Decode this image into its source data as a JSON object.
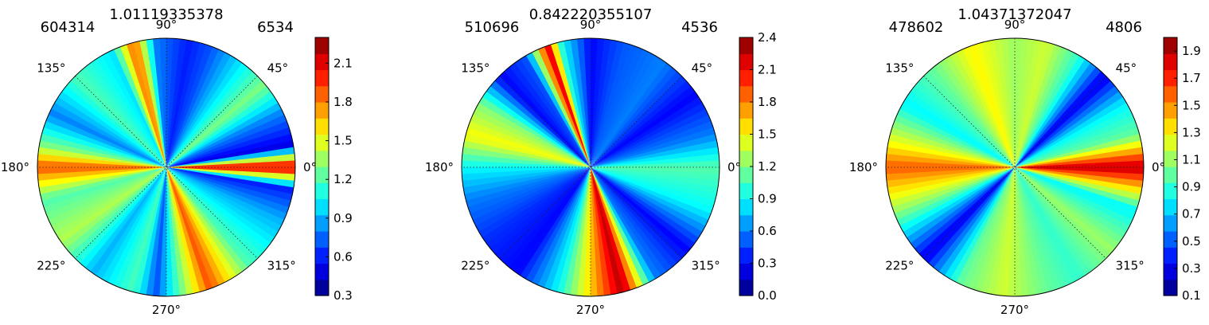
{
  "chart_data": [
    {
      "type": "polar-contour",
      "title": "1.01119335378",
      "left_label": "604314",
      "right_label": "6534",
      "angle_ticks": [
        "0°",
        "45°",
        "90°",
        "135°",
        "180°",
        "225°",
        "270°",
        "315°"
      ],
      "colorbar": {
        "ticks": [
          "0.3",
          "0.6",
          "0.9",
          "1.2",
          "1.5",
          "1.8",
          "2.1"
        ],
        "range": [
          0.3,
          2.3
        ]
      },
      "rays": [
        {
          "angle": 0,
          "value": 2.2
        },
        {
          "angle": 10,
          "value": 0.5
        },
        {
          "angle": 25,
          "value": 0.8
        },
        {
          "angle": 40,
          "value": 1.3
        },
        {
          "angle": 55,
          "value": 1.0
        },
        {
          "angle": 70,
          "value": 0.7
        },
        {
          "angle": 80,
          "value": 0.6
        },
        {
          "angle": 95,
          "value": 0.8
        },
        {
          "angle": 105,
          "value": 1.9
        },
        {
          "angle": 115,
          "value": 1.0
        },
        {
          "angle": 135,
          "value": 1.2
        },
        {
          "angle": 155,
          "value": 0.8
        },
        {
          "angle": 170,
          "value": 1.3
        },
        {
          "angle": 180,
          "value": 1.9
        },
        {
          "angle": 195,
          "value": 1.2
        },
        {
          "angle": 215,
          "value": 1.4
        },
        {
          "angle": 235,
          "value": 0.9
        },
        {
          "angle": 255,
          "value": 1.2
        },
        {
          "angle": 265,
          "value": 0.7
        },
        {
          "angle": 290,
          "value": 1.9
        },
        {
          "angle": 310,
          "value": 1.2
        },
        {
          "angle": 335,
          "value": 0.9
        },
        {
          "angle": 350,
          "value": 0.6
        }
      ]
    },
    {
      "type": "polar-contour",
      "title": "0.842220355107",
      "left_label": "510696",
      "right_label": "4536",
      "angle_ticks": [
        "0°",
        "45°",
        "90°",
        "135°",
        "180°",
        "225°",
        "270°",
        "315°"
      ],
      "colorbar": {
        "ticks": [
          "0.0",
          "0.3",
          "0.6",
          "0.9",
          "1.2",
          "1.5",
          "1.8",
          "2.1",
          "2.4"
        ],
        "range": [
          0.0,
          2.4
        ]
      },
      "rays": [
        {
          "angle": 0,
          "value": 1.1
        },
        {
          "angle": 15,
          "value": 0.6
        },
        {
          "angle": 35,
          "value": 0.3
        },
        {
          "angle": 55,
          "value": 0.6
        },
        {
          "angle": 75,
          "value": 0.5
        },
        {
          "angle": 90,
          "value": 0.3
        },
        {
          "angle": 103,
          "value": 0.9
        },
        {
          "angle": 110,
          "value": 2.2
        },
        {
          "angle": 120,
          "value": 0.5
        },
        {
          "angle": 135,
          "value": 0.3
        },
        {
          "angle": 150,
          "value": 1.2
        },
        {
          "angle": 165,
          "value": 1.5
        },
        {
          "angle": 180,
          "value": 0.9
        },
        {
          "angle": 195,
          "value": 0.6
        },
        {
          "angle": 215,
          "value": 0.4
        },
        {
          "angle": 235,
          "value": 0.3
        },
        {
          "angle": 255,
          "value": 0.9
        },
        {
          "angle": 285,
          "value": 2.3
        },
        {
          "angle": 300,
          "value": 0.6
        },
        {
          "angle": 320,
          "value": 0.3
        },
        {
          "angle": 340,
          "value": 0.9
        }
      ]
    },
    {
      "type": "polar-contour",
      "title": "1.04371372047",
      "left_label": "478602",
      "right_label": "4806",
      "angle_ticks": [
        "0°",
        "45°",
        "90°",
        "135°",
        "180°",
        "225°",
        "270°",
        "315°"
      ],
      "colorbar": {
        "ticks": [
          "0.1",
          "0.3",
          "0.5",
          "0.7",
          "0.9",
          "1.1",
          "1.3",
          "1.5",
          "1.7",
          "1.9"
        ],
        "range": [
          0.1,
          2.0
        ]
      },
      "rays": [
        {
          "angle": 0,
          "value": 1.9
        },
        {
          "angle": 15,
          "value": 1.0
        },
        {
          "angle": 30,
          "value": 0.8
        },
        {
          "angle": 45,
          "value": 0.3
        },
        {
          "angle": 60,
          "value": 0.9
        },
        {
          "angle": 75,
          "value": 1.2
        },
        {
          "angle": 90,
          "value": 1.1
        },
        {
          "angle": 110,
          "value": 1.3
        },
        {
          "angle": 130,
          "value": 1.0
        },
        {
          "angle": 150,
          "value": 0.8
        },
        {
          "angle": 170,
          "value": 1.3
        },
        {
          "angle": 180,
          "value": 1.6
        },
        {
          "angle": 200,
          "value": 1.1
        },
        {
          "angle": 225,
          "value": 0.3
        },
        {
          "angle": 245,
          "value": 1.0
        },
        {
          "angle": 265,
          "value": 1.2
        },
        {
          "angle": 285,
          "value": 1.0
        },
        {
          "angle": 300,
          "value": 0.9
        },
        {
          "angle": 320,
          "value": 1.1
        },
        {
          "angle": 340,
          "value": 0.8
        }
      ]
    }
  ]
}
